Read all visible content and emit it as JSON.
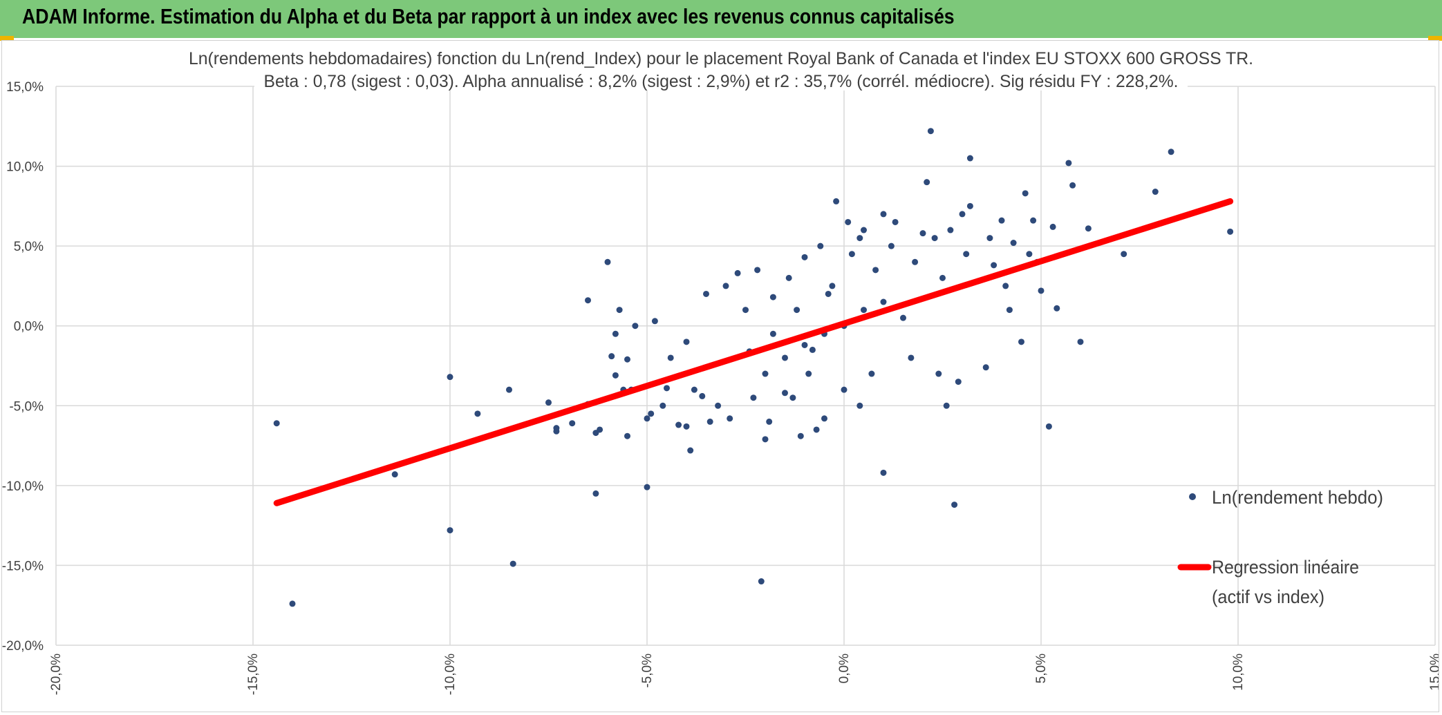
{
  "header": {
    "title": "ADAM Informe. Estimation du Alpha et du Beta par rapport à un index avec les revenus connus capitalisés",
    "background": "#7dc87a"
  },
  "chart_data": {
    "type": "scatter",
    "title": "Ln(rendements hebdomadaires) fonction du Ln(rend_Index) pour le placement Royal Bank of Canada et l'index EU STOXX 600 GROSS TR.",
    "subtitle": "Beta : 0,78 (sigest : 0,03). Alpha annualisé : 8,2% (sigest : 2,9%) et r2 : 35,7% (corrél. médiocre). Sig résidu FY : 228,2%.",
    "xlabel": "",
    "ylabel": "",
    "xlim": [
      -0.2,
      0.15
    ],
    "ylim": [
      -0.2,
      0.15
    ],
    "x_ticks": [
      -0.2,
      -0.15,
      -0.1,
      -0.05,
      0.0,
      0.05,
      0.1,
      0.15
    ],
    "x_tick_labels": [
      "-20,0%",
      "-15,0%",
      "-10,0%",
      "-5,0%",
      "0,0%",
      "5,0%",
      "10,0%",
      "15,0%"
    ],
    "y_ticks": [
      0.15,
      0.1,
      0.05,
      0.0,
      -0.05,
      -0.1,
      -0.15,
      -0.2
    ],
    "y_tick_labels": [
      "15,0%",
      "10,0%",
      "5,0%",
      "0,0%",
      "-5,0%",
      "-10,0%",
      "-15,0%",
      "-20,0%"
    ],
    "grid": true,
    "legend_position": "right",
    "series": [
      {
        "name": "Ln(rendement hebdo)",
        "kind": "scatter",
        "color": "#2e4a7a",
        "points": [
          [
            -0.144,
            -0.061
          ],
          [
            -0.14,
            -0.174
          ],
          [
            -0.114,
            -0.093
          ],
          [
            -0.1,
            -0.032
          ],
          [
            -0.1,
            -0.128
          ],
          [
            -0.093,
            -0.055
          ],
          [
            -0.085,
            -0.04
          ],
          [
            -0.084,
            -0.149
          ],
          [
            -0.075,
            -0.048
          ],
          [
            -0.073,
            -0.064
          ],
          [
            -0.073,
            -0.066
          ],
          [
            -0.069,
            -0.061
          ],
          [
            -0.065,
            0.016
          ],
          [
            -0.065,
            -0.049
          ],
          [
            -0.063,
            -0.067
          ],
          [
            -0.063,
            -0.105
          ],
          [
            -0.062,
            -0.065
          ],
          [
            -0.06,
            0.04
          ],
          [
            -0.059,
            -0.019
          ],
          [
            -0.058,
            -0.031
          ],
          [
            -0.058,
            -0.005
          ],
          [
            -0.057,
            0.01
          ],
          [
            -0.056,
            -0.04
          ],
          [
            -0.055,
            -0.021
          ],
          [
            -0.055,
            -0.069
          ],
          [
            -0.054,
            -0.04
          ],
          [
            -0.053,
            0.0
          ],
          [
            -0.05,
            -0.101
          ],
          [
            -0.05,
            -0.058
          ],
          [
            -0.049,
            -0.055
          ],
          [
            -0.048,
            0.003
          ],
          [
            -0.046,
            -0.05
          ],
          [
            -0.045,
            -0.039
          ],
          [
            -0.044,
            -0.02
          ],
          [
            -0.042,
            -0.062
          ],
          [
            -0.04,
            -0.063
          ],
          [
            -0.04,
            -0.01
          ],
          [
            -0.039,
            -0.078
          ],
          [
            -0.038,
            -0.04
          ],
          [
            -0.036,
            -0.044
          ],
          [
            -0.035,
            0.02
          ],
          [
            -0.034,
            -0.06
          ],
          [
            -0.032,
            -0.05
          ],
          [
            -0.03,
            0.025
          ],
          [
            -0.029,
            -0.058
          ],
          [
            -0.027,
            0.033
          ],
          [
            -0.025,
            0.01
          ],
          [
            -0.024,
            -0.016
          ],
          [
            -0.023,
            -0.045
          ],
          [
            -0.022,
            0.035
          ],
          [
            -0.021,
            -0.16
          ],
          [
            -0.02,
            -0.03
          ],
          [
            -0.02,
            -0.071
          ],
          [
            -0.019,
            -0.06
          ],
          [
            -0.018,
            0.018
          ],
          [
            -0.018,
            -0.005
          ],
          [
            -0.015,
            -0.02
          ],
          [
            -0.015,
            -0.042
          ],
          [
            -0.014,
            0.03
          ],
          [
            -0.013,
            -0.045
          ],
          [
            -0.012,
            0.01
          ],
          [
            -0.011,
            -0.069
          ],
          [
            -0.01,
            0.043
          ],
          [
            -0.009,
            -0.03
          ],
          [
            -0.008,
            -0.015
          ],
          [
            -0.007,
            -0.065
          ],
          [
            -0.006,
            0.05
          ],
          [
            -0.005,
            -0.058
          ],
          [
            -0.004,
            0.02
          ],
          [
            -0.003,
            0.025
          ],
          [
            -0.002,
            0.078
          ],
          [
            0.0,
            -0.04
          ],
          [
            0.001,
            0.065
          ],
          [
            0.002,
            0.045
          ],
          [
            0.004,
            0.055
          ],
          [
            0.004,
            -0.05
          ],
          [
            0.005,
            0.06
          ],
          [
            0.007,
            -0.03
          ],
          [
            0.008,
            0.035
          ],
          [
            0.01,
            -0.092
          ],
          [
            0.01,
            0.07
          ],
          [
            0.012,
            0.05
          ],
          [
            0.013,
            0.065
          ],
          [
            0.015,
            0.005
          ],
          [
            0.017,
            -0.02
          ],
          [
            0.018,
            0.04
          ],
          [
            0.02,
            0.058
          ],
          [
            0.021,
            0.09
          ],
          [
            0.022,
            0.122
          ],
          [
            0.023,
            0.055
          ],
          [
            0.024,
            -0.03
          ],
          [
            0.025,
            0.03
          ],
          [
            0.026,
            -0.05
          ],
          [
            0.027,
            0.06
          ],
          [
            0.028,
            -0.112
          ],
          [
            0.029,
            -0.035
          ],
          [
            0.03,
            0.07
          ],
          [
            0.031,
            0.045
          ],
          [
            0.032,
            0.105
          ],
          [
            0.032,
            0.075
          ],
          [
            0.034,
            0.028
          ],
          [
            0.036,
            -0.026
          ],
          [
            0.037,
            0.055
          ],
          [
            0.038,
            0.038
          ],
          [
            0.04,
            0.066
          ],
          [
            0.041,
            0.025
          ],
          [
            0.042,
            0.01
          ],
          [
            0.043,
            0.052
          ],
          [
            0.045,
            -0.01
          ],
          [
            0.046,
            0.083
          ],
          [
            0.047,
            0.045
          ],
          [
            0.048,
            0.066
          ],
          [
            0.049,
            0.04
          ],
          [
            0.05,
            0.022
          ],
          [
            0.052,
            -0.063
          ],
          [
            0.053,
            0.062
          ],
          [
            0.054,
            0.011
          ],
          [
            0.057,
            0.102
          ],
          [
            0.058,
            0.088
          ],
          [
            0.06,
            -0.01
          ],
          [
            0.062,
            0.061
          ],
          [
            0.071,
            0.045
          ],
          [
            0.079,
            0.084
          ],
          [
            0.083,
            0.109
          ],
          [
            0.098,
            0.059
          ],
          [
            0.0,
            0.0
          ],
          [
            0.005,
            0.01
          ],
          [
            -0.005,
            -0.005
          ],
          [
            0.01,
            0.015
          ],
          [
            -0.01,
            -0.012
          ]
        ]
      },
      {
        "name": "Regression linéaire\n(actif vs index)",
        "kind": "line",
        "color": "#ff0000",
        "x": [
          -0.144,
          0.098
        ],
        "y": [
          -0.111,
          0.078
        ]
      }
    ],
    "legend": {
      "scatter_label": "Ln(rendement hebdo)",
      "line_label_1": "Regression linéaire",
      "line_label_2": "(actif vs index)"
    }
  }
}
